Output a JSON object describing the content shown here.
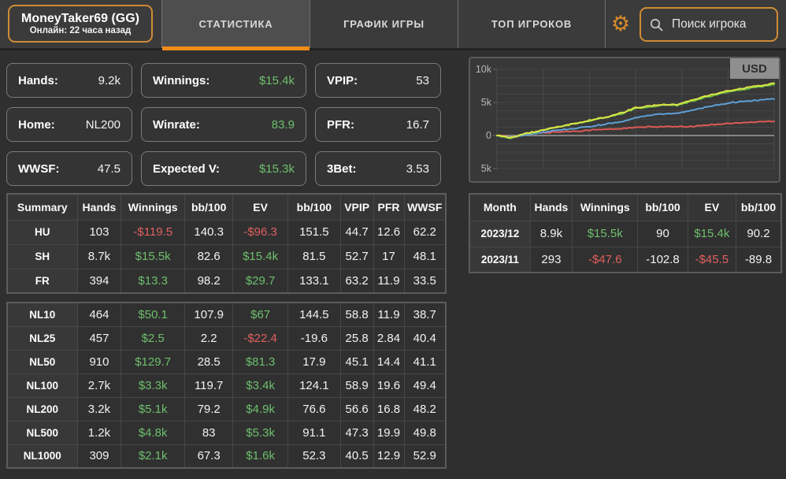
{
  "header": {
    "player": {
      "name": "MoneyTaker69 (GG)",
      "status": "Онлайн: 22 часа назад"
    },
    "tabs": [
      {
        "label": "СТАТИСТИКА",
        "active": true
      },
      {
        "label": "ГРАФИК ИГРЫ",
        "active": false
      },
      {
        "label": "ТОП ИГРОКОВ",
        "active": false
      }
    ],
    "search": {
      "placeholder": "Поиск игрока"
    }
  },
  "stats_cards": [
    {
      "label": "Hands:",
      "value": "9.2k",
      "green": false
    },
    {
      "label": "Winnings:",
      "value": "$15.4k",
      "green": true
    },
    {
      "label": "VPIP:",
      "value": "53",
      "green": false
    },
    {
      "label": "Home:",
      "value": "NL200",
      "green": false
    },
    {
      "label": "Winrate:",
      "value": "83.9",
      "green": true
    },
    {
      "label": "PFR:",
      "value": "16.7",
      "green": false
    },
    {
      "label": "WWSF:",
      "value": "47.5",
      "green": false
    },
    {
      "label": "Expected V:",
      "value": "$15.3k",
      "green": true
    },
    {
      "label": "3Bet:",
      "value": "3.53",
      "green": false
    }
  ],
  "summary_table": {
    "headers": [
      "Summary",
      "Hands",
      "Winnings",
      "bb/100",
      "EV",
      "bb/100",
      "VPIP",
      "PFR",
      "WWSF"
    ],
    "rows": [
      [
        "HU",
        "103",
        "-$119.5",
        "140.3",
        "-$96.3",
        "151.5",
        "44.7",
        "12.6",
        "62.2"
      ],
      [
        "SH",
        "8.7k",
        "$15.5k",
        "82.6",
        "$15.4k",
        "81.5",
        "52.7",
        "17",
        "48.1"
      ],
      [
        "FR",
        "394",
        "$13.3",
        "98.2",
        "$29.7",
        "133.1",
        "63.2",
        "11.9",
        "33.5"
      ]
    ]
  },
  "stakes_table": {
    "rows": [
      [
        "NL10",
        "464",
        "$50.1",
        "107.9",
        "$67",
        "144.5",
        "58.8",
        "11.9",
        "38.7"
      ],
      [
        "NL25",
        "457",
        "$2.5",
        "2.2",
        "-$22.4",
        "-19.6",
        "25.8",
        "2.84",
        "40.4"
      ],
      [
        "NL50",
        "910",
        "$129.7",
        "28.5",
        "$81.3",
        "17.9",
        "45.1",
        "14.4",
        "41.1"
      ],
      [
        "NL100",
        "2.7k",
        "$3.3k",
        "119.7",
        "$3.4k",
        "124.1",
        "58.9",
        "19.6",
        "49.4"
      ],
      [
        "NL200",
        "3.2k",
        "$5.1k",
        "79.2",
        "$4.9k",
        "76.6",
        "56.6",
        "16.8",
        "48.2"
      ],
      [
        "NL500",
        "1.2k",
        "$4.8k",
        "83",
        "$5.3k",
        "91.1",
        "47.3",
        "19.9",
        "49.8"
      ],
      [
        "NL1000",
        "309",
        "$2.1k",
        "67.3",
        "$1.6k",
        "52.3",
        "40.5",
        "12.9",
        "52.9"
      ]
    ]
  },
  "month_table": {
    "headers": [
      "Month",
      "Hands",
      "Winnings",
      "bb/100",
      "EV",
      "bb/100"
    ],
    "rows": [
      [
        "2023/12",
        "8.9k",
        "$15.5k",
        "90",
        "$15.4k",
        "90.2"
      ],
      [
        "2023/11",
        "293",
        "-$47.6",
        "-102.8",
        "-$45.5",
        "-89.8"
      ]
    ]
  },
  "chart_data": {
    "type": "line",
    "title": "",
    "unit_label": "USD",
    "xlabel": "",
    "ylabel": "",
    "ylim": [
      -5000,
      10000
    ],
    "grid": true,
    "legend_position": "none",
    "y_ticks": [
      {
        "value": 10000,
        "label": "10k"
      },
      {
        "value": 5000,
        "label": "5k"
      },
      {
        "value": 0,
        "label": "0"
      },
      {
        "value": -5000,
        "label": "5k"
      }
    ],
    "x": [
      0,
      0.05,
      0.1,
      0.15,
      0.2,
      0.25,
      0.3,
      0.35,
      0.4,
      0.45,
      0.5,
      0.55,
      0.6,
      0.65,
      0.7,
      0.75,
      0.8,
      0.85,
      0.9,
      0.95,
      1
    ],
    "series": [
      {
        "name": "red-line",
        "color": "#dc5a56",
        "values": [
          0,
          -250,
          150,
          350,
          500,
          600,
          700,
          850,
          950,
          1050,
          1200,
          1300,
          1350,
          1300,
          1350,
          1550,
          1750,
          1850,
          1950,
          2100,
          2150
        ]
      },
      {
        "name": "blue-line",
        "color": "#5e9fd4",
        "values": [
          0,
          -300,
          100,
          400,
          700,
          950,
          1150,
          1450,
          1750,
          2050,
          2650,
          3050,
          3250,
          3350,
          3750,
          4250,
          4650,
          5000,
          5150,
          5350,
          5500
        ]
      },
      {
        "name": "green-line",
        "color": "#6abe43",
        "values": [
          0,
          -400,
          200,
          650,
          1100,
          1500,
          1900,
          2350,
          2750,
          3300,
          4100,
          4350,
          4600,
          4550,
          5150,
          5750,
          6250,
          6750,
          7050,
          7350,
          7700
        ]
      },
      {
        "name": "yellow-line",
        "color": "#dfe645",
        "values": [
          0,
          -350,
          260,
          720,
          1160,
          1580,
          2000,
          2430,
          2860,
          3420,
          4200,
          4460,
          4700,
          4660,
          5300,
          5900,
          6400,
          6900,
          7200,
          7550,
          7900
        ]
      }
    ]
  },
  "colors": {
    "accent_orange": "#ef8b17",
    "positive_green": "#6dbf6d",
    "negative_red": "#e25f5f",
    "zero_line": "#9c9c9c"
  }
}
